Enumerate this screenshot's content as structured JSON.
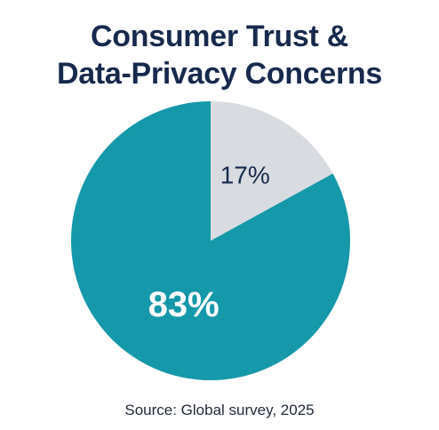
{
  "chart_data": {
    "type": "pie",
    "title": "Consumer Trust & Data-Privacy Concerns",
    "title_lines": [
      "Consumer Trust &",
      "Data-Privacy Concerns"
    ],
    "slices": [
      {
        "label": "17%",
        "value": 17,
        "color": "#d8dbe0",
        "label_color": "#172a4d"
      },
      {
        "label": "83%",
        "value": 83,
        "color": "#1598a9",
        "label_color": "#ffffff"
      }
    ],
    "legend": "none",
    "source": "Source: Global survey, 2025"
  }
}
